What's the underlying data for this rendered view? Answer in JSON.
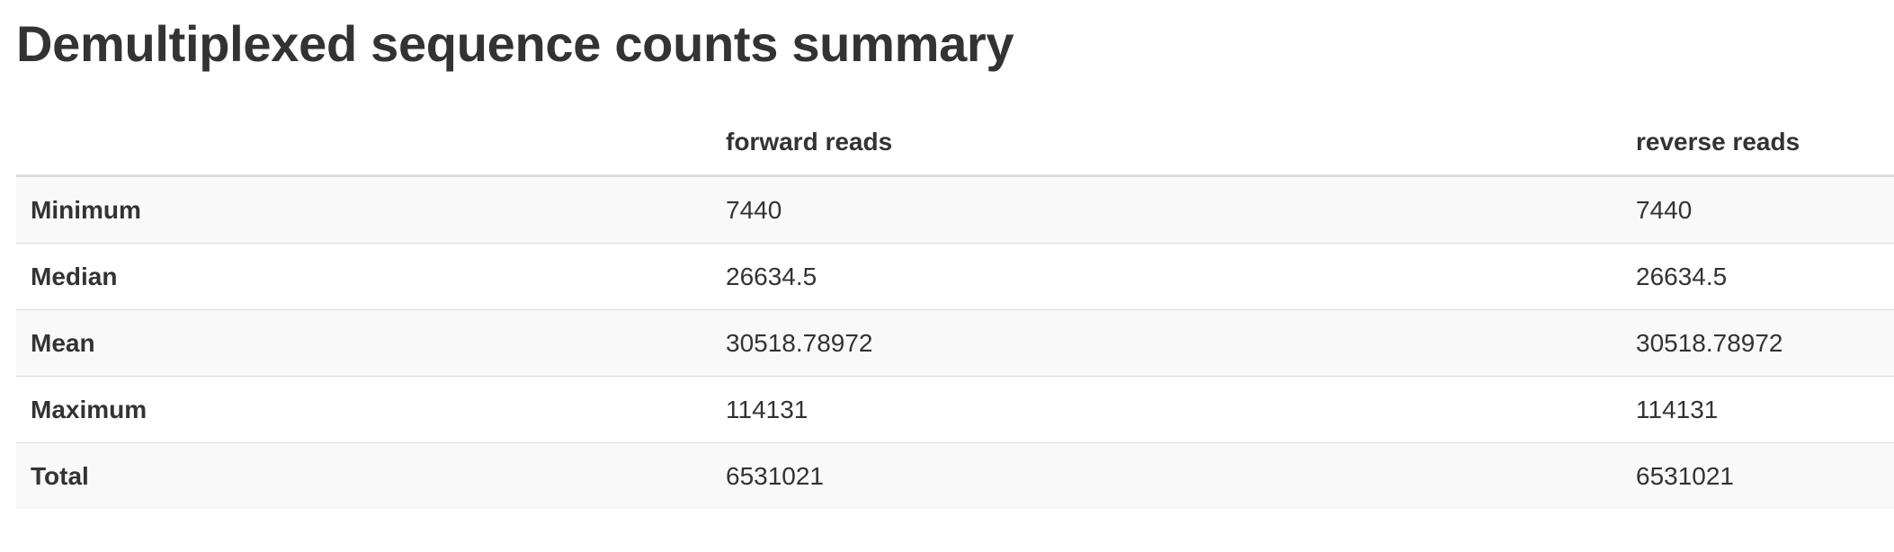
{
  "page": {
    "title": "Demultiplexed sequence counts summary"
  },
  "table": {
    "columns": [
      "",
      "forward reads",
      "reverse reads"
    ],
    "rows": [
      {
        "label": "Minimum",
        "forward": "7440",
        "reverse": "7440"
      },
      {
        "label": "Median",
        "forward": "26634.5",
        "reverse": "26634.5"
      },
      {
        "label": "Mean",
        "forward": "30518.78972",
        "reverse": "30518.78972"
      },
      {
        "label": "Maximum",
        "forward": "114131",
        "reverse": "114131"
      },
      {
        "label": "Total",
        "forward": "6531021",
        "reverse": "6531021"
      }
    ]
  }
}
